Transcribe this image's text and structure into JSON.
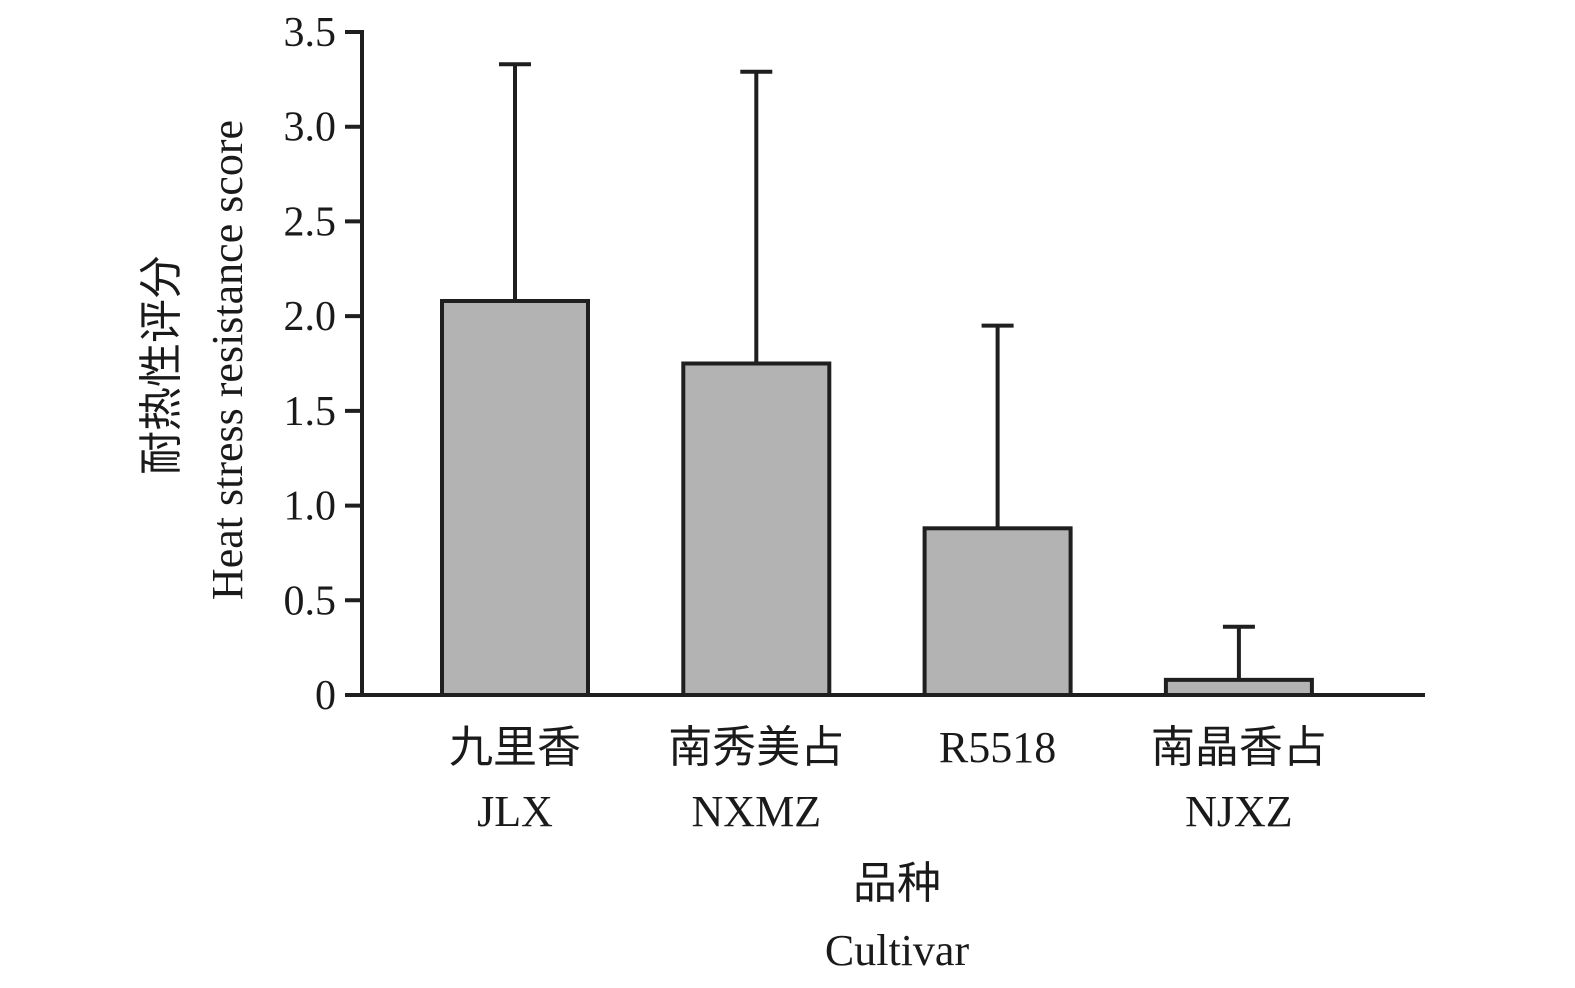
{
  "chart_data": {
    "type": "bar",
    "categories_cn": [
      "九里香",
      "南秀美占",
      "R5518",
      "南晶香占"
    ],
    "categories_en": [
      "JLX",
      "NXMZ",
      "",
      "NJXZ"
    ],
    "values": [
      2.08,
      1.75,
      0.88,
      0.08
    ],
    "error_upper": [
      3.33,
      3.29,
      1.95,
      0.36
    ],
    "ylabel_cn": "耐热性评分",
    "ylabel_en": "Heat stress resistance score",
    "xlabel_cn": "品种",
    "xlabel_en": "Cultivar",
    "ylim": [
      0,
      3.5
    ],
    "yticks": [
      0,
      0.5,
      1.0,
      1.5,
      2.0,
      2.5,
      3.0,
      3.5
    ],
    "ytick_labels": [
      "0",
      "0.5",
      "1.0",
      "1.5",
      "2.0",
      "2.5",
      "3.0",
      "3.5"
    ],
    "grid": false,
    "colors": {
      "bar_fill": "#b3b3b3",
      "stroke": "#1f1f1f"
    }
  }
}
